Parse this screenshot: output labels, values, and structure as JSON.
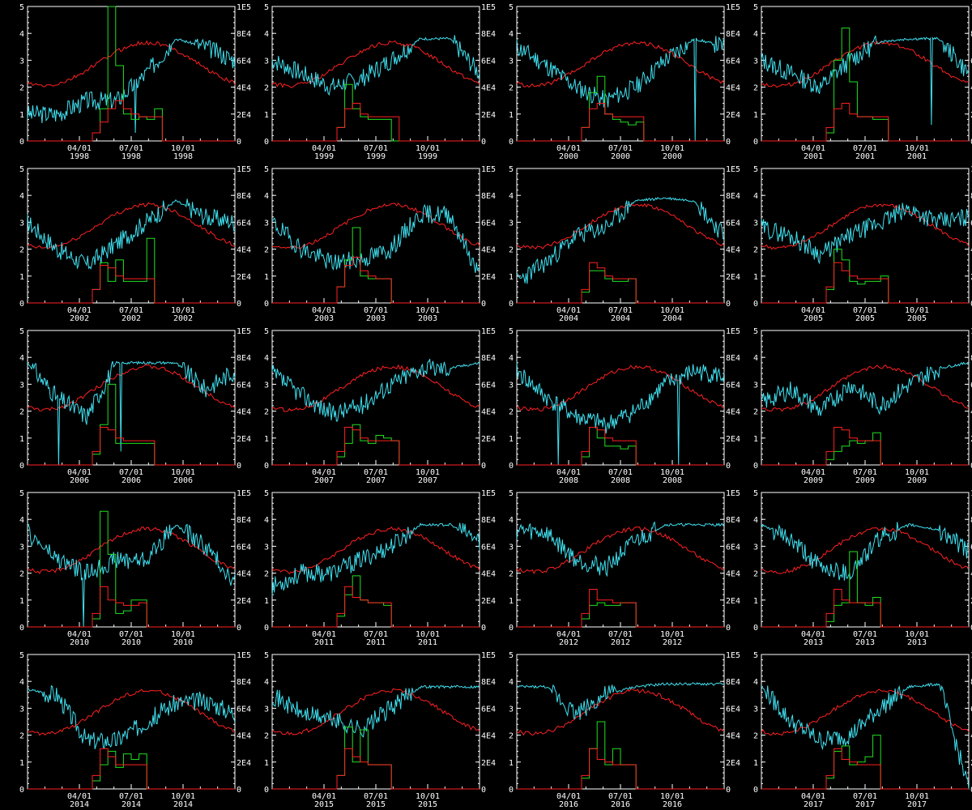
{
  "layout": {
    "rows": 5,
    "cols": 4
  },
  "colors": {
    "background": "#000000",
    "axes": "#ffffff",
    "cyan": "#40e0f0",
    "red": "#ff2020",
    "green": "#20e020"
  },
  "left_axis": {
    "range": [
      0,
      5
    ],
    "ticks": [
      "0",
      "1",
      "2",
      "3",
      "4",
      "5"
    ]
  },
  "right_axis": {
    "range": [
      0,
      100000
    ],
    "ticks": [
      "0",
      "2E4",
      "4E4",
      "6E4",
      "8E4",
      "1E5"
    ]
  },
  "x_tick_months": [
    "04/01",
    "07/01",
    "10/01"
  ],
  "chart_data": [
    {
      "type": "line",
      "year": "1998",
      "cyan_seed": 3,
      "cyan_level": [
        1.0,
        1.0,
        1.5,
        1.5,
        2.5,
        3.8,
        3.5,
        3.0
      ],
      "green_vals": [
        0,
        0,
        0,
        0.3,
        1.2,
        5.0,
        2.8,
        1.0,
        0.8,
        0.9,
        0.8,
        1.2,
        0,
        0,
        0,
        0
      ],
      "red_vals": [
        0,
        0,
        0,
        0.3,
        0.7,
        1.2,
        1.5,
        1.2,
        1.0,
        0.9,
        0.9,
        0.9,
        0,
        0,
        0,
        0
      ],
      "cyan_spikes": [
        [
          0.52,
          0.3
        ]
      ]
    },
    {
      "type": "line",
      "year": "1999",
      "cyan_seed": 7,
      "cyan_level": [
        3.0,
        2.5,
        2.0,
        2.3,
        3.0,
        3.8,
        3.8,
        2.5
      ],
      "green_vals": [
        0,
        0,
        0,
        0.5,
        2.1,
        1.2,
        0.9,
        0.8,
        0.8,
        0.8,
        0,
        0,
        0,
        0,
        0,
        0
      ],
      "red_vals": [
        0,
        0,
        0,
        0.5,
        1.2,
        1.4,
        1.0,
        0.9,
        0.9,
        0.9,
        0.9,
        0,
        0,
        0,
        0,
        0
      ],
      "cyan_spikes": []
    },
    {
      "type": "line",
      "year": "2000",
      "cyan_seed": 11,
      "cyan_level": [
        3.5,
        2.8,
        2.0,
        1.5,
        2.0,
        3.0,
        3.8,
        3.5
      ],
      "green_vals": [
        0,
        0,
        0,
        0.5,
        1.8,
        2.4,
        1.0,
        0.8,
        0.7,
        0.6,
        0.7,
        0,
        0,
        0,
        0,
        0
      ],
      "red_vals": [
        0,
        0,
        0,
        0.5,
        1.2,
        1.4,
        1.0,
        0.9,
        0.9,
        0.9,
        0.9,
        0,
        0,
        0,
        0,
        0
      ],
      "cyan_spikes": [
        [
          0.86,
          0.0
        ]
      ]
    },
    {
      "type": "line",
      "year": "2001",
      "cyan_seed": 13,
      "cyan_level": [
        3.0,
        2.5,
        2.0,
        3.0,
        3.7,
        3.8,
        3.8,
        2.5
      ],
      "green_vals": [
        0,
        0,
        0,
        0.3,
        3.0,
        4.2,
        2.2,
        0.9,
        0.9,
        0.8,
        0.8,
        0,
        0,
        0,
        0,
        0
      ],
      "red_vals": [
        0,
        0,
        0,
        0.5,
        1.2,
        1.4,
        1.0,
        0.9,
        0.9,
        0.9,
        0.9,
        0,
        0,
        0,
        0,
        0
      ],
      "cyan_spikes": [
        [
          0.82,
          0.6
        ]
      ]
    },
    {
      "type": "line",
      "year": "2002",
      "cyan_seed": 17,
      "cyan_level": [
        3.0,
        2.0,
        1.4,
        2.2,
        3.0,
        3.8,
        3.2,
        3.0
      ],
      "green_vals": [
        0,
        0,
        0,
        0.5,
        1.5,
        0.8,
        1.6,
        0.8,
        0.8,
        0.8,
        2.4,
        0,
        0,
        0,
        0,
        0
      ],
      "red_vals": [
        0,
        0,
        0,
        0.5,
        1.4,
        1.3,
        1.0,
        0.9,
        0.9,
        0.9,
        0.9,
        0,
        0,
        0,
        0,
        0
      ],
      "cyan_spikes": []
    },
    {
      "type": "line",
      "year": "2003",
      "cyan_seed": 19,
      "cyan_level": [
        3.0,
        2.0,
        1.5,
        1.6,
        2.0,
        3.3,
        3.3,
        1.0
      ],
      "green_vals": [
        0,
        0,
        0,
        0.6,
        1.6,
        2.8,
        1.0,
        0.9,
        0.9,
        0.9,
        0,
        0,
        0,
        0,
        0,
        0
      ],
      "red_vals": [
        0,
        0,
        0,
        0.6,
        1.4,
        1.7,
        1.2,
        1.0,
        0.9,
        0.9,
        0,
        0,
        0,
        0,
        0,
        0
      ],
      "cyan_spikes": []
    },
    {
      "type": "line",
      "year": "2004",
      "cyan_seed": 23,
      "cyan_level": [
        0.8,
        1.5,
        2.5,
        2.8,
        3.8,
        3.9,
        3.8,
        2.5
      ],
      "green_vals": [
        0,
        0,
        0,
        0.4,
        1.2,
        1.2,
        0.9,
        0.8,
        0.8,
        0.9,
        0,
        0,
        0,
        0,
        0,
        0
      ],
      "red_vals": [
        0,
        0,
        0,
        0.5,
        1.5,
        1.3,
        1.0,
        0.9,
        0.9,
        0.9,
        0,
        0,
        0,
        0,
        0,
        0
      ],
      "cyan_spikes": []
    },
    {
      "type": "line",
      "year": "2005",
      "cyan_seed": 29,
      "cyan_level": [
        2.8,
        2.5,
        1.8,
        2.5,
        3.0,
        3.5,
        3.0,
        3.2
      ],
      "green_vals": [
        0,
        0,
        0,
        0.5,
        2.0,
        1.6,
        0.8,
        0.7,
        0.8,
        0.8,
        1.0,
        0,
        0,
        0,
        0,
        0
      ],
      "red_vals": [
        0,
        0,
        0,
        0.6,
        1.5,
        1.2,
        1.0,
        0.9,
        0.9,
        0.9,
        0.9,
        0,
        0,
        0,
        0,
        0
      ],
      "cyan_spikes": []
    },
    {
      "type": "line",
      "year": "2006",
      "cyan_seed": 31,
      "cyan_level": [
        3.8,
        2.5,
        1.8,
        3.8,
        3.8,
        3.8,
        2.8,
        3.5
      ],
      "green_vals": [
        0,
        0,
        0,
        0.4,
        1.5,
        3.0,
        0.8,
        0.8,
        0.8,
        0.8,
        0.8,
        0,
        0,
        0,
        0,
        0
      ],
      "red_vals": [
        0,
        0,
        0,
        0.5,
        1.4,
        1.3,
        1.0,
        0.9,
        0.9,
        0.9,
        0.9,
        0,
        0,
        0,
        0,
        0
      ],
      "cyan_spikes": [
        [
          0.15,
          0.0
        ],
        [
          0.45,
          0.5
        ]
      ]
    },
    {
      "type": "line",
      "year": "2007",
      "cyan_seed": 37,
      "cyan_level": [
        3.4,
        2.6,
        1.9,
        2.2,
        3.0,
        3.6,
        3.6,
        3.8
      ],
      "green_vals": [
        0,
        0,
        0,
        0.3,
        0.8,
        1.5,
        0.9,
        0.8,
        1.1,
        1.0,
        0.9,
        0,
        0,
        0,
        0,
        0
      ],
      "red_vals": [
        0,
        0,
        0,
        0.5,
        1.4,
        1.3,
        1.0,
        0.9,
        0.9,
        0.9,
        0.9,
        0,
        0,
        0,
        0,
        0
      ],
      "cyan_spikes": []
    },
    {
      "type": "line",
      "year": "2008",
      "cyan_seed": 41,
      "cyan_level": [
        3.5,
        2.5,
        1.8,
        1.5,
        2.0,
        3.0,
        3.5,
        3.3
      ],
      "green_vals": [
        0,
        0,
        0,
        0.3,
        1.4,
        1.0,
        0.7,
        0.7,
        0.6,
        0.7,
        0,
        0,
        0,
        0,
        0,
        0
      ],
      "red_vals": [
        0,
        0,
        0,
        0.5,
        1.4,
        1.3,
        1.0,
        0.9,
        0.9,
        0.9,
        0,
        0,
        0,
        0,
        0,
        0
      ],
      "cyan_spikes": [
        [
          0.2,
          0.0
        ],
        [
          0.78,
          0.0
        ]
      ]
    },
    {
      "type": "line",
      "year": "2009",
      "cyan_seed": 43,
      "cyan_level": [
        2.3,
        2.8,
        2.0,
        3.0,
        2.2,
        3.0,
        3.6,
        3.8
      ],
      "green_vals": [
        0,
        0,
        0,
        0.2,
        0.5,
        0.7,
        0.9,
        0.8,
        0.9,
        1.2,
        0,
        0,
        0,
        0,
        0,
        0
      ],
      "red_vals": [
        0,
        0,
        0,
        0.5,
        1.4,
        1.3,
        1.0,
        0.9,
        0.9,
        0.9,
        0,
        0,
        0,
        0,
        0,
        0
      ],
      "cyan_spikes": []
    },
    {
      "type": "line",
      "year": "2010",
      "cyan_seed": 47,
      "cyan_level": [
        3.5,
        2.5,
        2.0,
        2.5,
        2.5,
        3.8,
        3.0,
        1.7
      ],
      "green_vals": [
        0,
        0,
        0,
        0.3,
        4.3,
        2.7,
        0.5,
        0.6,
        1.0,
        1.0,
        0,
        0,
        0,
        0,
        0,
        0
      ],
      "red_vals": [
        0,
        0,
        0,
        0.5,
        1.5,
        1.0,
        0.9,
        0.8,
        0.8,
        0.9,
        0,
        0,
        0,
        0,
        0,
        0
      ],
      "cyan_spikes": [
        [
          0.27,
          0.0
        ]
      ]
    },
    {
      "type": "line",
      "year": "2011",
      "cyan_seed": 53,
      "cyan_level": [
        1.5,
        2.0,
        2.0,
        2.5,
        3.0,
        3.8,
        3.8,
        3.2
      ],
      "green_vals": [
        0,
        0,
        0,
        0.4,
        1.2,
        1.9,
        1.0,
        0.9,
        0.9,
        0.8,
        0,
        0,
        0,
        0,
        0,
        0
      ],
      "red_vals": [
        0,
        0,
        0,
        0.5,
        1.5,
        1.1,
        1.0,
        0.9,
        0.9,
        0.9,
        0,
        0,
        0,
        0,
        0,
        0
      ],
      "cyan_spikes": []
    },
    {
      "type": "line",
      "year": "2012",
      "cyan_seed": 59,
      "cyan_level": [
        3.6,
        3.5,
        2.5,
        2.2,
        3.2,
        3.8,
        3.8,
        3.8
      ],
      "green_vals": [
        0,
        0,
        0,
        0.3,
        0.8,
        0.9,
        0.8,
        0.8,
        0.9,
        0.9,
        0,
        0,
        0,
        0,
        0,
        0
      ],
      "red_vals": [
        0,
        0,
        0,
        0.5,
        1.4,
        1.0,
        1.0,
        0.9,
        0.9,
        0.9,
        0,
        0,
        0,
        0,
        0,
        0
      ],
      "cyan_spikes": []
    },
    {
      "type": "line",
      "year": "2013",
      "cyan_seed": 61,
      "cyan_level": [
        3.8,
        3.2,
        2.2,
        2.0,
        3.3,
        3.8,
        3.6,
        2.8
      ],
      "green_vals": [
        0,
        0,
        0,
        0.2,
        0.8,
        0.9,
        2.8,
        0.9,
        0.8,
        1.1,
        0,
        0,
        0,
        0,
        0,
        0
      ],
      "red_vals": [
        0,
        0,
        0,
        0.5,
        1.4,
        1.0,
        0.9,
        0.9,
        0.9,
        0.9,
        0,
        0,
        0,
        0,
        0,
        0
      ],
      "cyan_spikes": []
    },
    {
      "type": "line",
      "year": "2014",
      "cyan_seed": 67,
      "cyan_level": [
        3.7,
        3.5,
        1.8,
        1.8,
        2.5,
        3.2,
        3.3,
        2.8
      ],
      "green_vals": [
        0,
        0,
        0,
        0.3,
        0.9,
        1.4,
        0.8,
        1.3,
        1.1,
        1.3,
        0,
        0,
        0,
        0,
        0,
        0
      ],
      "red_vals": [
        0,
        0,
        0,
        0.5,
        1.5,
        1.2,
        0.9,
        0.9,
        0.9,
        0.9,
        0,
        0,
        0,
        0,
        0,
        0
      ],
      "cyan_spikes": []
    },
    {
      "type": "line",
      "year": "2015",
      "cyan_seed": 71,
      "cyan_level": [
        3.5,
        2.8,
        2.6,
        2.2,
        3.0,
        3.8,
        3.8,
        3.8
      ],
      "green_vals": [
        0,
        0,
        0,
        0.5,
        2.3,
        1.0,
        2.2,
        0.9,
        0.9,
        0.9,
        0,
        0,
        0,
        0,
        0,
        0
      ],
      "red_vals": [
        0,
        0,
        0,
        0.5,
        1.5,
        1.2,
        1.0,
        0.9,
        0.9,
        0.9,
        0,
        0,
        0,
        0,
        0,
        0
      ],
      "cyan_spikes": []
    },
    {
      "type": "line",
      "year": "2016",
      "cyan_seed": 73,
      "cyan_level": [
        3.8,
        3.8,
        2.8,
        3.5,
        3.8,
        3.9,
        3.9,
        3.9
      ],
      "green_vals": [
        0,
        0,
        0,
        0.4,
        1.5,
        2.5,
        0.9,
        1.5,
        0.9,
        0.9,
        0,
        0,
        0,
        0,
        0,
        0
      ],
      "red_vals": [
        0,
        0,
        0,
        0.5,
        1.5,
        1.1,
        1.0,
        0.9,
        0.9,
        0.9,
        0,
        0,
        0,
        0,
        0,
        0
      ],
      "cyan_spikes": []
    },
    {
      "type": "line",
      "year": "2017",
      "cyan_seed": 79,
      "cyan_level": [
        3.8,
        2.5,
        1.8,
        2.0,
        3.0,
        3.8,
        3.9,
        0.0
      ],
      "green_vals": [
        0,
        0,
        0,
        0.4,
        1.4,
        1.6,
        0.9,
        1.0,
        1.2,
        2.0,
        0,
        0,
        0,
        0,
        0,
        0
      ],
      "red_vals": [
        0,
        0,
        0,
        0.5,
        1.5,
        1.1,
        1.0,
        0.9,
        0.9,
        0.9,
        0,
        0,
        0,
        0,
        0,
        0
      ],
      "cyan_spikes": []
    }
  ]
}
